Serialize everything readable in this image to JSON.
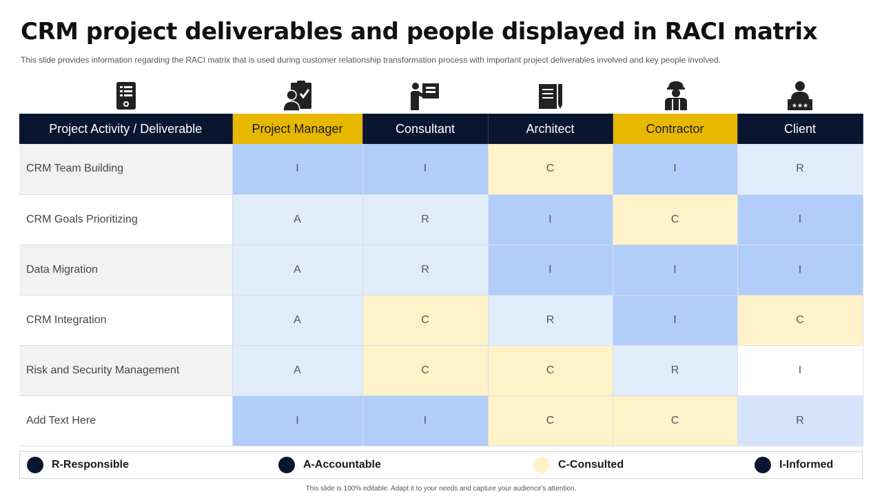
{
  "title": "CRM project deliverables and people displayed in RACI matrix",
  "subtitle": "This slide provides  information  regarding  the RACI matrix that is used during customer relationship transformation process with important project deliverables  involved  and key people involved.",
  "icons": [
    "checklist-device-icon",
    "clipboard-person-icon",
    "presenter-icon",
    "document-pen-icon",
    "construction-worker-icon",
    "client-stars-icon"
  ],
  "colors": {
    "header_dark": "#0a1630",
    "header_gold": "#e8b800",
    "responsible": "#e1ecfb",
    "accountable": "#e1ecfb",
    "consulted": "#fff2c9",
    "informed": "#b1cdf9"
  },
  "table": {
    "headers": [
      "Project Activity / Deliverable",
      "Project Manager",
      "Consultant",
      "Architect",
      "Contractor",
      "Client"
    ],
    "header_styles": [
      "dark",
      "gold",
      "dark",
      "dark",
      "gold",
      "dark"
    ],
    "rows": [
      {
        "activity": "CRM Team Building",
        "values": [
          "I",
          "I",
          "C",
          "I",
          "R"
        ],
        "fills": [
          "#b1cdf9",
          "#b1cdf9",
          "#fff2c9",
          "#b1cdf9",
          "#e1ecfb"
        ]
      },
      {
        "activity": "CRM Goals Prioritizing",
        "values": [
          "A",
          "R",
          "I",
          "C",
          "I"
        ],
        "fills": [
          "#e1ecfb",
          "#e1ecfb",
          "#b1cdf9",
          "#fff2c9",
          "#b1cdf9"
        ]
      },
      {
        "activity": "Data Migration",
        "values": [
          "A",
          "R",
          "I",
          "I",
          "I"
        ],
        "fills": [
          "#e1ecfb",
          "#e1ecfb",
          "#b1cdf9",
          "#b1cdf9",
          "#b1cdf9"
        ]
      },
      {
        "activity": "CRM Integration",
        "values": [
          "A",
          "C",
          "R",
          "I",
          "C"
        ],
        "fills": [
          "#e1ecfb",
          "#fff2c9",
          "#e1ecfb",
          "#b1cdf9",
          "#fff2c9"
        ]
      },
      {
        "activity": "Risk and Security  Management",
        "values": [
          "A",
          "C",
          "C",
          "R",
          "I"
        ],
        "fills": [
          "#e1ecfb",
          "#fff2c9",
          "#fff2c9",
          "#e1ecfb",
          "#ffffff"
        ]
      },
      {
        "activity": "Add Text Here",
        "values": [
          "I",
          "I",
          "C",
          "C",
          "R"
        ],
        "fills": [
          "#b1cdf9",
          "#b1cdf9",
          "#fff2c9",
          "#fff2c9",
          "#d6e4fb"
        ]
      }
    ]
  },
  "legend": [
    {
      "label": "R-Responsible",
      "color": "#0a1630"
    },
    {
      "label": "A-Accountable",
      "color": "#0a1630"
    },
    {
      "label": "C-Consulted",
      "color": "#fff2c9"
    },
    {
      "label": "I-Informed",
      "color": "#0a1630"
    }
  ],
  "footer": "This slide is 100% editable. Adapt it to your needs and capture your audience's attention."
}
